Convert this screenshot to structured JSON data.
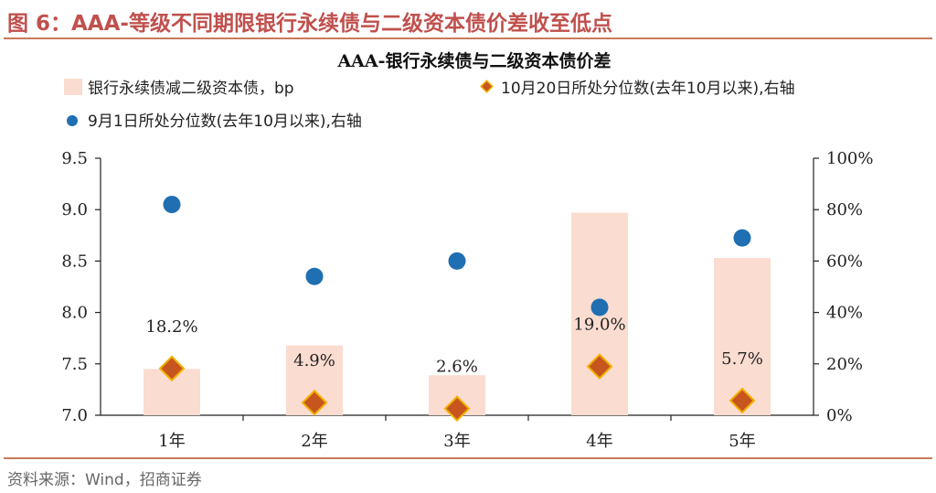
{
  "figure_title": "图 6：AAA-等级不同期限银行永续债与二级资本债价差收至低点",
  "source": "资料来源：Wind，招商证券",
  "colors": {
    "bar": "#fbdcd0",
    "diamond": "#c7561e",
    "diamond_edge": "#f2b100",
    "dot": "#1f6fb2",
    "accent": "#c0504d"
  },
  "chart_data": {
    "type": "bar",
    "title": "AAA-银行永续债与二级资本债价差",
    "categories": [
      "1年",
      "2年",
      "3年",
      "4年",
      "5年"
    ],
    "series": [
      {
        "name": "银行永续债减二级资本债，bp",
        "type": "bar",
        "axis": "left",
        "values": [
          7.45,
          7.68,
          7.39,
          8.97,
          8.53
        ]
      },
      {
        "name": "10月20日所处分位数(去年10月以来),右轴",
        "type": "scatter",
        "marker": "diamond",
        "axis": "right",
        "values": [
          18.2,
          4.9,
          2.6,
          19.0,
          5.7
        ],
        "labels": [
          "18.2%",
          "4.9%",
          "2.6%",
          "19.0%",
          "5.7%"
        ]
      },
      {
        "name": "9月1日所处分位数(去年10月以来),右轴",
        "type": "scatter",
        "marker": "circle",
        "axis": "right",
        "values": [
          82,
          54,
          60,
          42,
          69
        ]
      }
    ],
    "left_axis": {
      "min": 7.0,
      "max": 9.5,
      "ticks": [
        "7.0",
        "7.5",
        "8.0",
        "8.5",
        "9.0",
        "9.5"
      ]
    },
    "right_axis": {
      "min": 0,
      "max": 100,
      "ticks": [
        "0%",
        "20%",
        "40%",
        "60%",
        "80%",
        "100%"
      ]
    },
    "grid": false,
    "legend_position": "top"
  }
}
